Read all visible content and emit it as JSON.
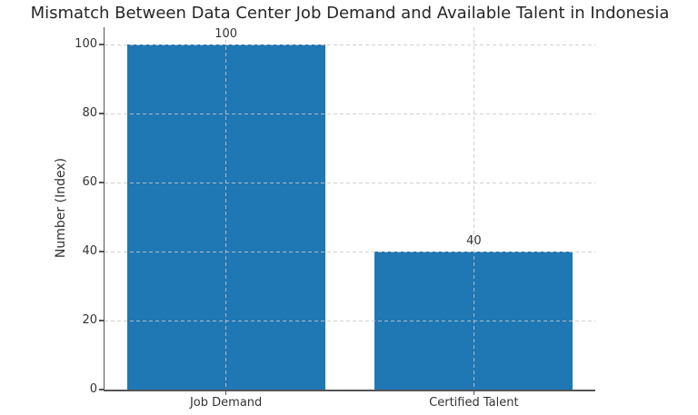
{
  "chart_data": {
    "type": "bar",
    "title": "Mismatch Between Data Center Job Demand and Available Talent in Indonesia",
    "ylabel": "Number (Index)",
    "xlabel": "",
    "categories": [
      "Job Demand",
      "Certified Talent"
    ],
    "values": [
      100,
      40
    ],
    "value_labels": [
      "100",
      "40"
    ],
    "yticks": [
      0,
      20,
      40,
      60,
      80,
      100
    ],
    "ylim": [
      0,
      105
    ],
    "bar_color": "#1f77b4",
    "grid": true,
    "grid_style": "dashed",
    "legend": "none"
  }
}
